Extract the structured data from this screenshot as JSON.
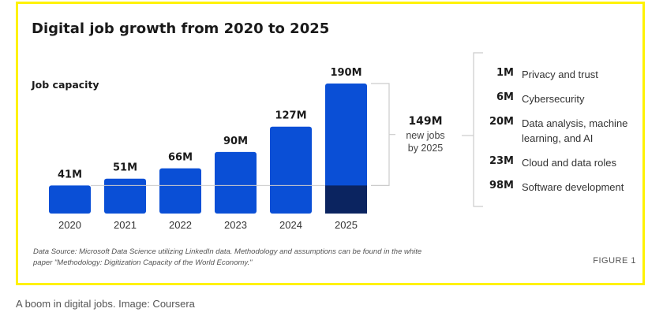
{
  "chart_data": {
    "type": "bar",
    "title": "Digital job growth from 2020 to 2025",
    "subtitle": "Job capacity",
    "categories": [
      "2020",
      "2021",
      "2022",
      "2023",
      "2024",
      "2025"
    ],
    "values": [
      41,
      51,
      66,
      90,
      127,
      190
    ],
    "value_labels": [
      "41M",
      "51M",
      "66M",
      "90M",
      "127M",
      "190M"
    ],
    "unit": "M",
    "highlight": {
      "category": "2025",
      "base_value": 41,
      "note": "bottom segment up to the 2020 level shaded dark"
    },
    "colors": {
      "bar": "#0a4fd6",
      "bar_base_2025": "#0b2460",
      "frame": "#fff200",
      "guide_line": "#cccccc"
    },
    "grid": false,
    "legend": "none",
    "total": {
      "value": "149M",
      "description": "new jobs by 2025"
    },
    "breakdown": [
      {
        "value": "1M",
        "label": "Privacy and trust"
      },
      {
        "value": "6M",
        "label": "Cybersecurity"
      },
      {
        "value": "20M",
        "label": "Data analysis, machine learning, and AI"
      },
      {
        "value": "23M",
        "label": "Cloud and data roles"
      },
      {
        "value": "98M",
        "label": "Software development"
      }
    ],
    "source_note": "Data Source: Microsoft Data Science utilizing LinkedIn data. Methodology and assumptions can be found in the white paper \"Methodology: Digitization Capacity of the World Economy.\"",
    "figure_label": "FIGURE 1"
  },
  "caption": "A boom in digital jobs. Image: Coursera"
}
